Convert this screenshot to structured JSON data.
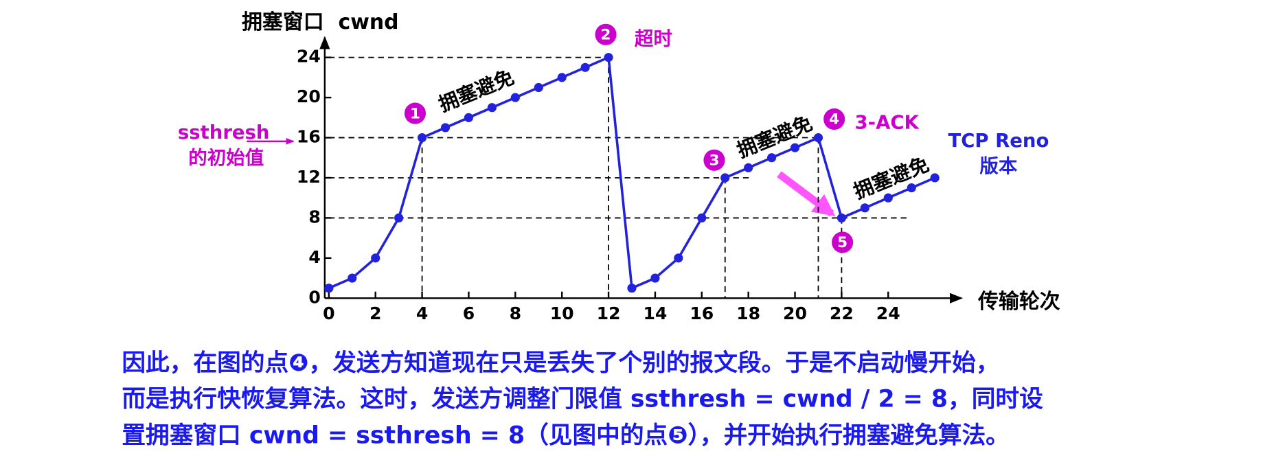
{
  "chart_data": {
    "type": "line",
    "y_label": "拥塞窗口  cwnd",
    "x_label": "传输轮次",
    "x": [
      0,
      1,
      2,
      3,
      4,
      5,
      6,
      7,
      8,
      9,
      10,
      11,
      12,
      13,
      14,
      15,
      16,
      17,
      18,
      19,
      20,
      21,
      22,
      23,
      24,
      25,
      26
    ],
    "series": [
      {
        "color": "#2222dd",
        "values": [
          1,
          2,
          4,
          8,
          16,
          17,
          18,
          19,
          20,
          21,
          22,
          23,
          24,
          1,
          2,
          4,
          8,
          12,
          13,
          14,
          15,
          16,
          8,
          9,
          10,
          11,
          12
        ]
      }
    ],
    "xlim": [
      0,
      27.5
    ],
    "ylim": [
      0,
      26
    ],
    "xticks": [
      0,
      2,
      4,
      6,
      8,
      10,
      12,
      14,
      16,
      18,
      20,
      22,
      24
    ],
    "yticks": [
      0,
      4,
      8,
      12,
      16,
      20,
      24
    ],
    "point_markers": [
      "1",
      "2",
      "3",
      "4",
      "5"
    ],
    "annotations": [
      "超时",
      "3-ACK",
      "TCP Reno",
      "版本",
      "ssthresh",
      "的初始值",
      "拥塞避免",
      "拥塞避免",
      "拥塞避免"
    ],
    "caption": [
      "因此，在图的点❹，发送方知道现在只是丢失了个别的报文段。于是不启动慢开始，",
      "而是执行快恢复算法。这时，发送方调整门限值 ssthresh = cwnd / 2 = 8，同时设",
      "置拥塞窗口 cwnd = ssthresh = 8（见图中的点❺），并开始执行拥塞避免算法。"
    ]
  }
}
